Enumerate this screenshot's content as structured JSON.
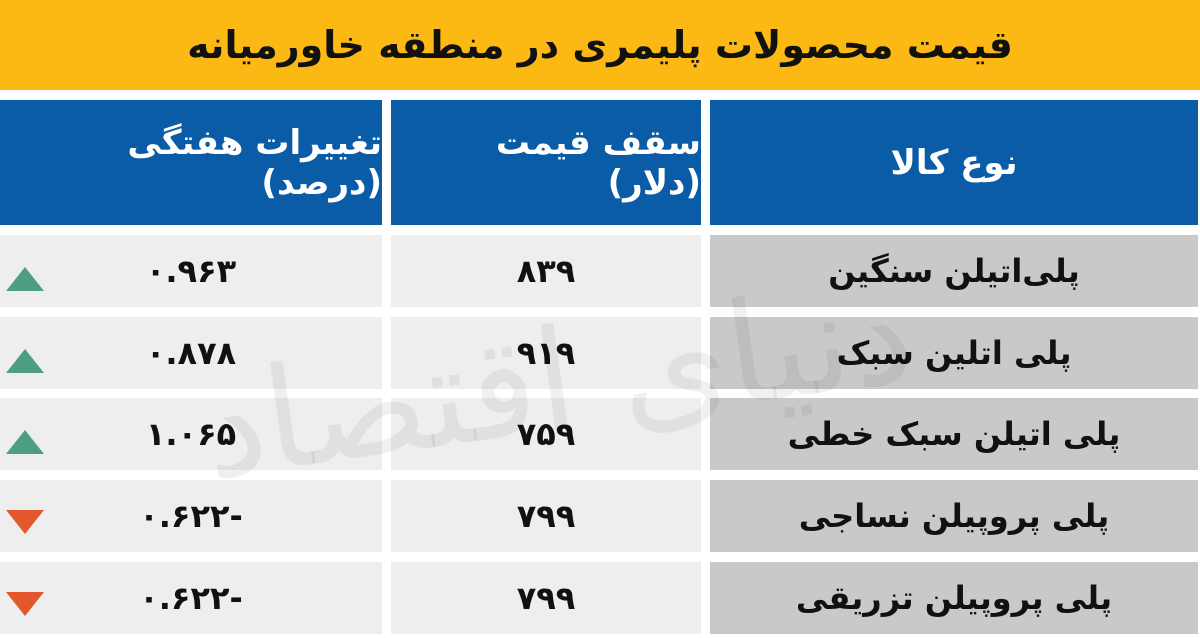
{
  "title": "قیمت محصولات پلیمری در منطقه خاورمیانه",
  "watermark": "دنیای اقتصاد",
  "colors": {
    "title_bg": "#fdb913",
    "header_bg": "#0a5ca6",
    "up": "#4e9e82",
    "down": "#e2572b"
  },
  "chart_data": {
    "type": "table",
    "title": "قیمت محصولات پلیمری در منطقه خاورمیانه",
    "columns": [
      "نوع کالا",
      "سقف قیمت (دلار)",
      "تغییرات هفتگی (درصد)"
    ],
    "rows": [
      {
        "name": "پلی‌اتیلن سنگین",
        "price": "۸۳۹",
        "change": "۰.۹۶۳",
        "trend": "up"
      },
      {
        "name": "پلی اتلین سبک",
        "price": "۹۱۹",
        "change": "۰.۸۷۸",
        "trend": "up"
      },
      {
        "name": "پلی اتیلن سبک خطی",
        "price": "۷۵۹",
        "change": "۱.۰۶۵",
        "trend": "up"
      },
      {
        "name": "پلی پروپیلن نساجی",
        "price": "۷۹۹",
        "change": "-۰.۶۲۲",
        "trend": "down"
      },
      {
        "name": "پلی پروپیلن تزریقی",
        "price": "۷۹۹",
        "change": "-۰.۶۲۲",
        "trend": "down"
      }
    ]
  }
}
